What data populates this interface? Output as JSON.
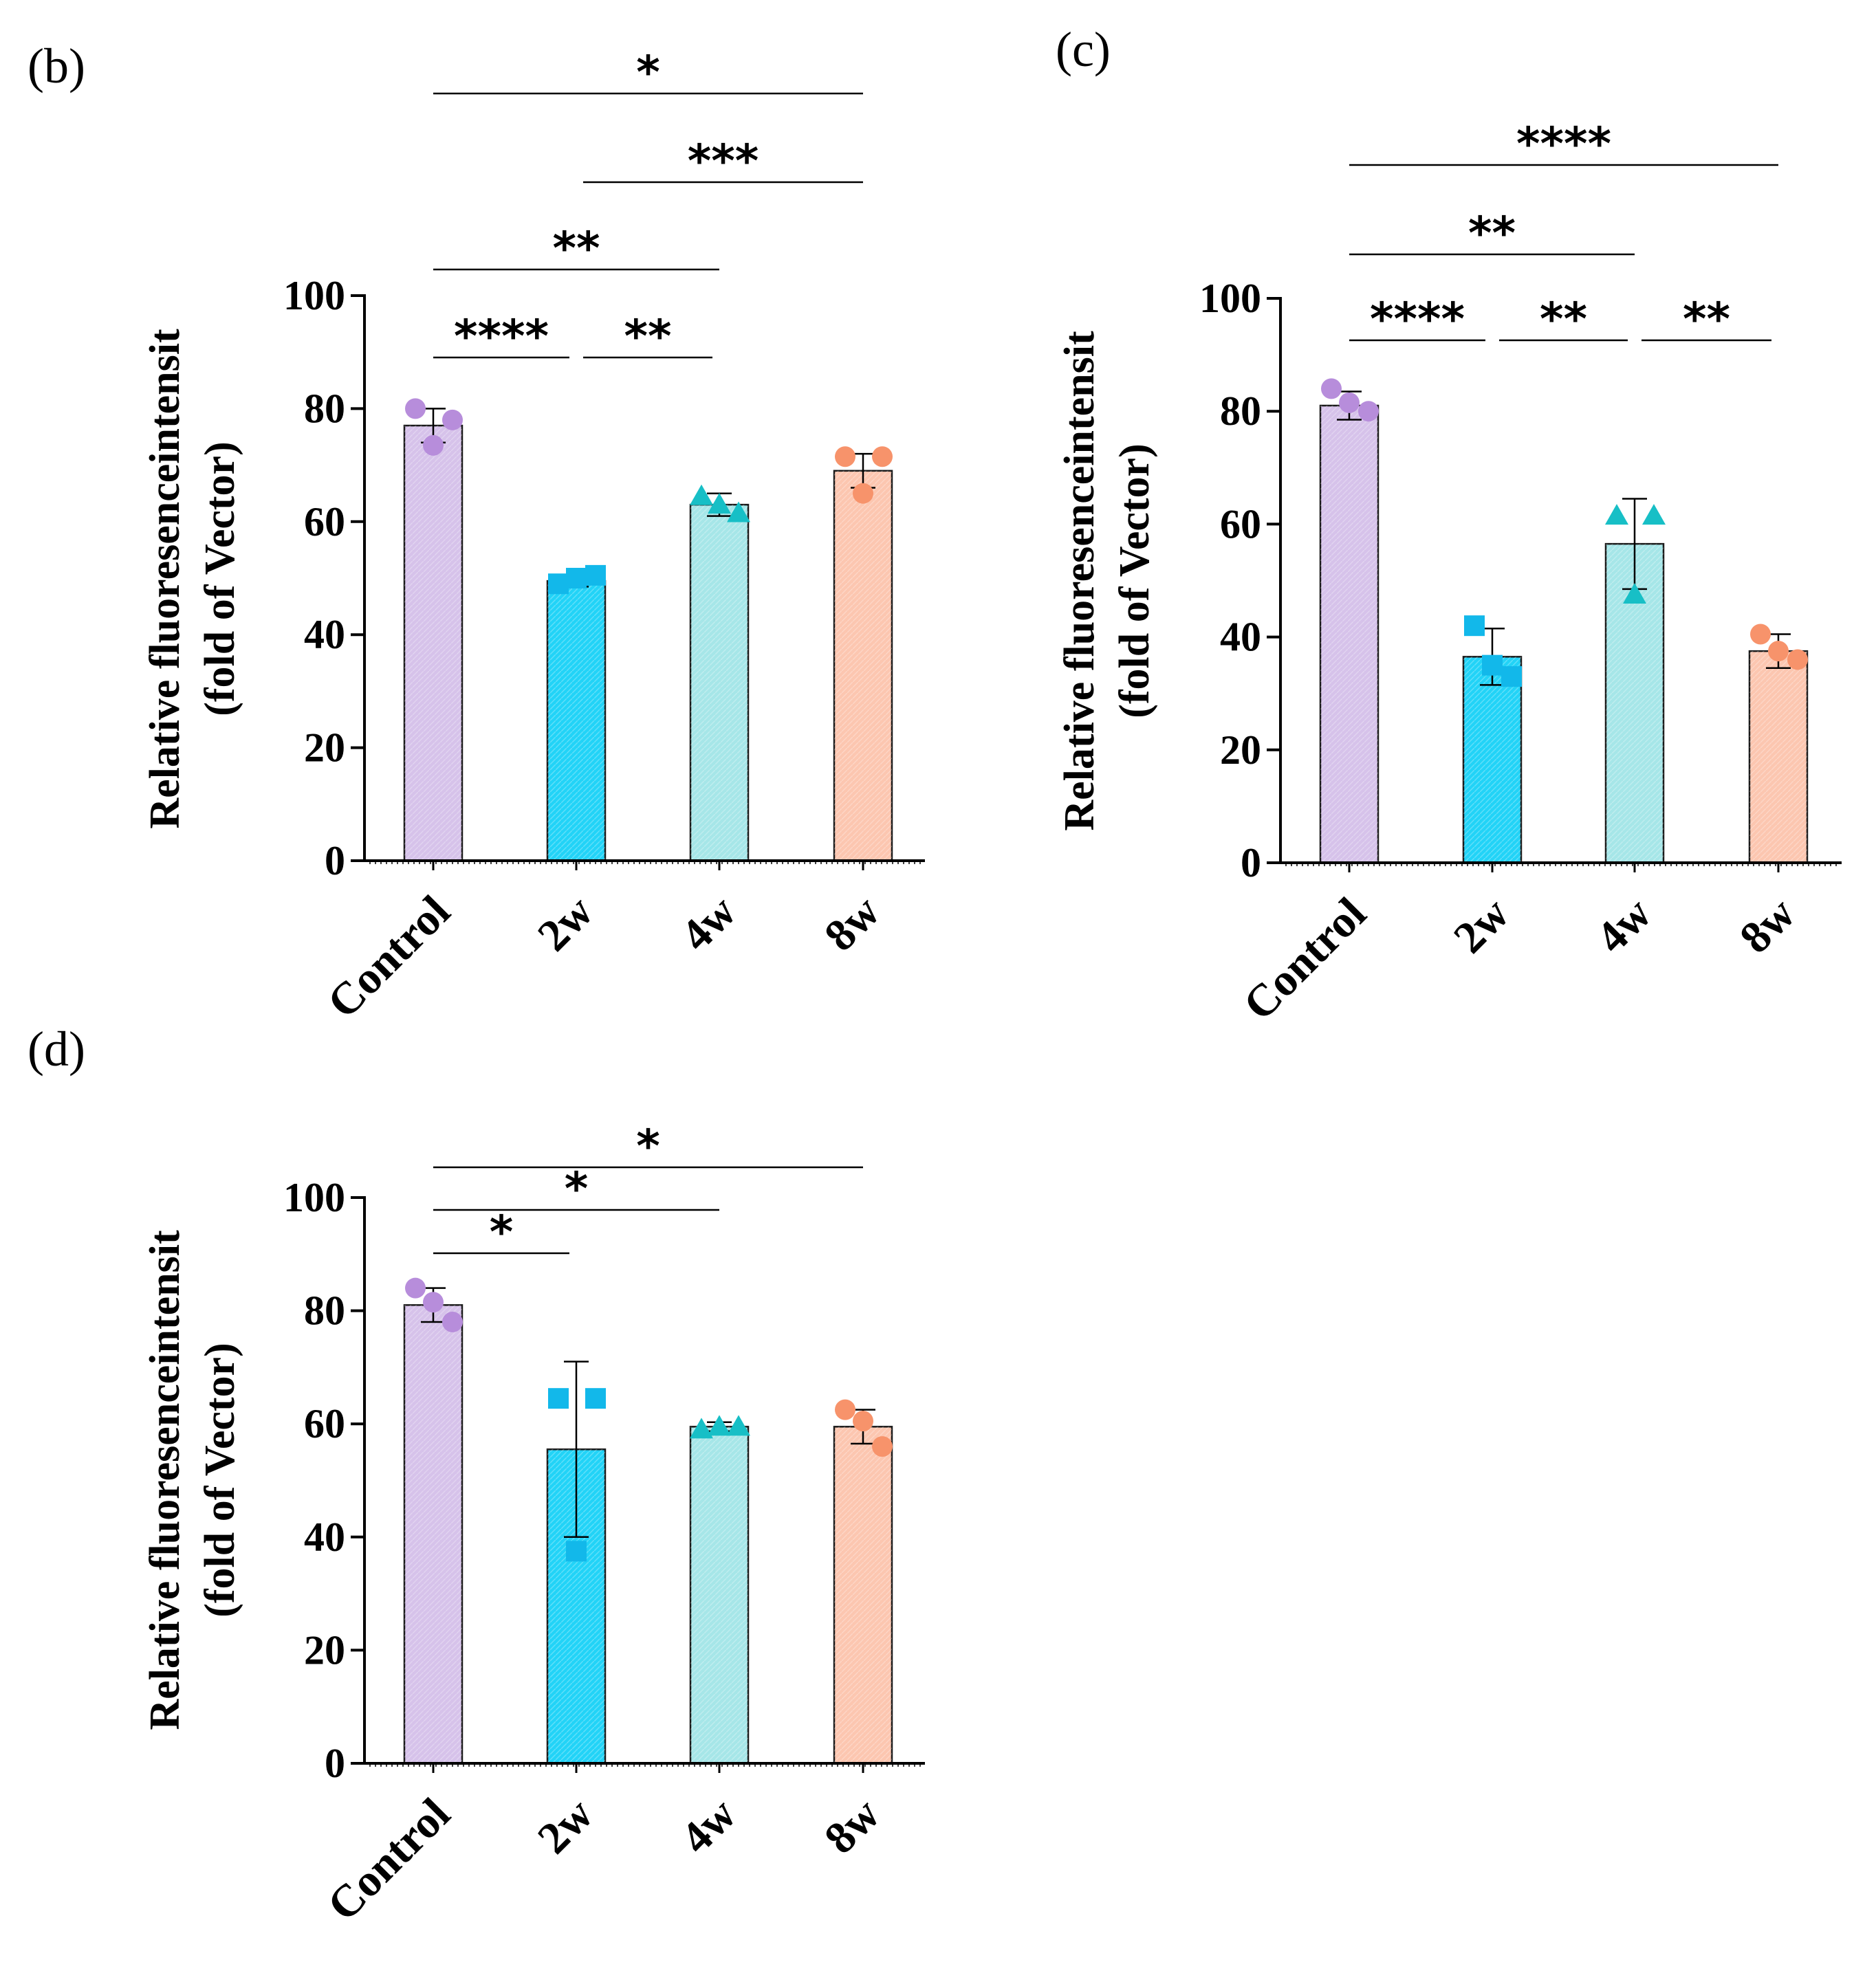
{
  "colors": {
    "Control": "#d6c2ea",
    "2w": "#22d3f7",
    "4w": "#a6e6e8",
    "8w": "#fcc6b0",
    "point_Control": "#b78ddb",
    "point_2w": "#12b8ea",
    "point_4w": "#17bfc6",
    "point_8w": "#f7936b",
    "axis": "#000000"
  },
  "chart_data": [
    {
      "panel": "(b)",
      "type": "bar",
      "categories": [
        "Control",
        "2w",
        "4w",
        "8w"
      ],
      "values": [
        77,
        49.5,
        63,
        69
      ],
      "errors": [
        3,
        1,
        2,
        3
      ],
      "points": [
        [
          80,
          78,
          73.5
        ],
        [
          49,
          50.5,
          50
        ],
        [
          64.5,
          61.5,
          63
        ],
        [
          71.5,
          71.5,
          65
        ]
      ],
      "markers": [
        "circle",
        "square",
        "triangle",
        "circle"
      ],
      "ylabel": [
        "Relative fluoresenceintensit",
        "(fold of Vector)"
      ],
      "ylim": [
        0,
        100
      ],
      "yticks": [
        "0",
        "20",
        "40",
        "60",
        "80",
        "100"
      ],
      "significance": [
        {
          "from": 0,
          "to": 1,
          "label": "****"
        },
        {
          "from": 1,
          "to": 2,
          "label": "**"
        },
        {
          "from": 0,
          "to": 2,
          "label": "**"
        },
        {
          "from": 1,
          "to": 3,
          "label": "***"
        },
        {
          "from": 0,
          "to": 3,
          "label": "*"
        }
      ]
    },
    {
      "panel": "(c)",
      "type": "bar",
      "categories": [
        "Control",
        "2w",
        "4w",
        "8w"
      ],
      "values": [
        81,
        36.5,
        56.5,
        37.5
      ],
      "errors": [
        2.5,
        5,
        8,
        3
      ],
      "points": [
        [
          84,
          80,
          81.5
        ],
        [
          42,
          33,
          35
        ],
        [
          61.5,
          61.5,
          47.5
        ],
        [
          40.5,
          36,
          37.5
        ]
      ],
      "markers": [
        "circle",
        "square",
        "triangle",
        "circle"
      ],
      "ylabel": [
        "Relative fluoresenceintensit",
        "(fold of Vector)"
      ],
      "ylim": [
        0,
        100
      ],
      "yticks": [
        "0",
        "20",
        "40",
        "60",
        "80",
        "100"
      ],
      "significance": [
        {
          "from": 0,
          "to": 1,
          "label": "****"
        },
        {
          "from": 1,
          "to": 2,
          "label": "**"
        },
        {
          "from": 2,
          "to": 3,
          "label": "**"
        },
        {
          "from": 0,
          "to": 2,
          "label": "**"
        },
        {
          "from": 0,
          "to": 3,
          "label": "****"
        }
      ]
    },
    {
      "panel": "(d)",
      "type": "bar",
      "categories": [
        "Control",
        "2w",
        "4w",
        "8w"
      ],
      "values": [
        81,
        55.5,
        59.5,
        59.5
      ],
      "errors": [
        3,
        15.5,
        0.8,
        3
      ],
      "points": [
        [
          84,
          78,
          81.5
        ],
        [
          64.5,
          64.5,
          37.5
        ],
        [
          59,
          59.5,
          59.5
        ],
        [
          62.5,
          56,
          60.5
        ]
      ],
      "markers": [
        "circle",
        "square",
        "triangle",
        "circle"
      ],
      "ylabel": [
        "Relative fluoresenceintensit",
        "(fold of Vector)"
      ],
      "ylim": [
        0,
        100
      ],
      "yticks": [
        "0",
        "20",
        "40",
        "60",
        "80",
        "100"
      ],
      "significance": [
        {
          "from": 0,
          "to": 1,
          "label": "*"
        },
        {
          "from": 0,
          "to": 2,
          "label": "*"
        },
        {
          "from": 0,
          "to": 3,
          "label": "*"
        }
      ]
    }
  ]
}
